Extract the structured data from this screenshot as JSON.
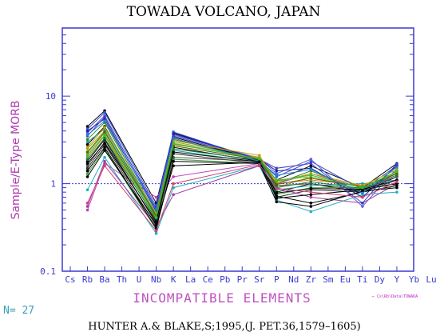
{
  "chart_data": {
    "type": "line",
    "title": "TOWADA VOLCANO, JAPAN",
    "ylabel": "Sample/E-Type MORB",
    "xlabel": "INCOMPATIBLE ELEMENTS",
    "yscale": "log",
    "ylim": [
      0.1,
      60
    ],
    "yticks": [
      0.1,
      1,
      10
    ],
    "ytick_labels": [
      "0.1",
      "1",
      "10"
    ],
    "reference_line": 1,
    "categories": [
      "Cs",
      "Rb",
      "Ba",
      "Th",
      "U",
      "Nb",
      "K",
      "La",
      "Ce",
      "Pb",
      "Pr",
      "Sr",
      "P",
      "Nd",
      "Zr",
      "Sm",
      "Eu",
      "Ti",
      "Dy",
      "Y",
      "Yb",
      "Lu"
    ],
    "sample_count_label": "N= 27",
    "citation": "HUNTER A.& BLAKE,S;1995,(J. PET.36,1579–1605)",
    "credit": "← Cs\\Rb\\Data\\TOWADA",
    "series": [
      {
        "color": "#000000",
        "values": {
          "Rb": 4.5,
          "Ba": 6.8,
          "Nb": 0.6,
          "K": 3.8,
          "Sr": 1.9,
          "P": 1.1,
          "Zr": 1.6,
          "Ti": 0.9,
          "Y": 1.7
        }
      },
      {
        "color": "#3050e0",
        "values": {
          "Rb": 4.2,
          "Ba": 6.5,
          "Nb": 0.55,
          "K": 3.9,
          "Sr": 1.85,
          "P": 1.2,
          "Zr": 1.8,
          "Ti": 0.85,
          "Y": 1.6
        }
      },
      {
        "color": "#c040c0",
        "values": {
          "Rb": 0.5,
          "Ba": 1.7,
          "Nb": 0.7,
          "K": 1.2,
          "Sr": 1.7,
          "P": 1.0,
          "Zr": 1.3,
          "Ti": 0.9,
          "Y": 1.2
        }
      },
      {
        "color": "#20b0c0",
        "values": {
          "Rb": 0.85,
          "Ba": 2.0,
          "Nb": 0.27,
          "K": 0.9,
          "Sr": 1.6,
          "P": 0.65,
          "Zr": 0.48,
          "Ti": 0.75,
          "Y": 0.8
        }
      },
      {
        "color": "#2a8a2a",
        "values": {
          "Rb": 3.2,
          "Ba": 5.0,
          "Nb": 0.45,
          "K": 3.2,
          "Sr": 1.9,
          "P": 1.0,
          "Zr": 1.4,
          "Ti": 0.8,
          "Y": 1.4
        }
      },
      {
        "color": "#a0a020",
        "values": {
          "Rb": 2.5,
          "Ba": 4.0,
          "Nb": 0.4,
          "K": 3.0,
          "Sr": 2.0,
          "P": 0.9,
          "Zr": 1.2,
          "Ti": 0.85,
          "Y": 1.3
        }
      },
      {
        "color": "#000000",
        "values": {
          "Rb": 1.8,
          "Ba": 3.2,
          "Nb": 0.35,
          "K": 2.6,
          "Sr": 1.8,
          "P": 0.8,
          "Zr": 1.0,
          "Ti": 0.8,
          "Y": 1.2
        }
      },
      {
        "color": "#6060e0",
        "values": {
          "Rb": 3.8,
          "Ba": 6.0,
          "Nb": 0.5,
          "K": 3.6,
          "Sr": 1.95,
          "P": 1.3,
          "Zr": 1.9,
          "Ti": 0.55,
          "Y": 1.5
        }
      },
      {
        "color": "#303030",
        "values": {
          "Rb": 1.5,
          "Ba": 2.8,
          "Nb": 0.33,
          "K": 2.2,
          "Sr": 1.7,
          "P": 0.7,
          "Zr": 0.85,
          "Ti": 0.8,
          "Y": 1.1
        }
      },
      {
        "color": "#40a040",
        "values": {
          "Rb": 1.3,
          "Ba": 2.5,
          "Nb": 0.3,
          "K": 1.9,
          "Sr": 1.7,
          "P": 0.75,
          "Zr": 0.9,
          "Ti": 0.9,
          "Y": 1.0
        }
      },
      {
        "color": "#e08020",
        "values": {
          "Rb": 2.0,
          "Ba": 3.5,
          "Nb": 0.38,
          "K": 2.8,
          "Sr": 2.0,
          "P": 1.0,
          "Zr": 1.1,
          "Ti": 0.95,
          "Y": 1.3
        }
      },
      {
        "color": "#a040a0",
        "values": {
          "Rb": 0.55,
          "Ba": 1.8,
          "Nb": 0.32,
          "K": 0.75,
          "Sr": 1.6,
          "P": 0.9,
          "Zr": 0.7,
          "Ti": 0.6,
          "Y": 1.0
        }
      },
      {
        "color": "#000000",
        "values": {
          "Rb": 2.8,
          "Ba": 4.5,
          "Nb": 0.42,
          "K": 3.4,
          "Sr": 1.85,
          "P": 0.68,
          "Zr": 0.75,
          "Ti": 0.85,
          "Y": 1.0
        }
      },
      {
        "color": "#2020a0",
        "values": {
          "Rb": 4.0,
          "Ba": 5.5,
          "Nb": 0.48,
          "K": 3.7,
          "Sr": 1.9,
          "P": 1.4,
          "Zr": 1.5,
          "Ti": 0.7,
          "Y": 1.6
        }
      },
      {
        "color": "#20a0a0",
        "values": {
          "Rb": 3.0,
          "Ba": 4.2,
          "Nb": 0.44,
          "K": 2.4,
          "Sr": 1.75,
          "P": 0.85,
          "Zr": 0.95,
          "Ti": 1.0,
          "Y": 1.1
        }
      },
      {
        "color": "#505050",
        "values": {
          "Rb": 1.6,
          "Ba": 3.0,
          "Nb": 0.36,
          "K": 2.0,
          "Sr": 1.8,
          "P": 0.95,
          "Zr": 1.0,
          "Ti": 0.85,
          "Y": 1.2
        }
      },
      {
        "color": "#80c040",
        "values": {
          "Rb": 2.2,
          "Ba": 3.8,
          "Nb": 0.4,
          "K": 2.9,
          "Sr": 1.95,
          "P": 1.1,
          "Zr": 1.2,
          "Ti": 0.9,
          "Y": 1.35
        }
      },
      {
        "color": "#000000",
        "values": {
          "Rb": 1.2,
          "Ba": 2.4,
          "Nb": 0.34,
          "K": 1.6,
          "Sr": 1.75,
          "P": 0.72,
          "Zr": 0.6,
          "Ti": 0.8,
          "Y": 0.95
        }
      },
      {
        "color": "#4040c0",
        "values": {
          "Rb": 3.5,
          "Ba": 5.8,
          "Nb": 0.52,
          "K": 3.5,
          "Sr": 1.9,
          "P": 1.5,
          "Zr": 1.7,
          "Ti": 0.6,
          "Y": 1.7
        }
      },
      {
        "color": "#c0a000",
        "values": {
          "Rb": 2.6,
          "Ba": 4.4,
          "Nb": 0.46,
          "K": 3.1,
          "Sr": 2.1,
          "P": 1.05,
          "Zr": 1.3,
          "Ti": 0.95,
          "Y": 1.45
        }
      },
      {
        "color": "#108040",
        "values": {
          "Rb": 1.9,
          "Ba": 3.3,
          "Nb": 0.39,
          "K": 2.5,
          "Sr": 1.85,
          "P": 0.9,
          "Zr": 1.05,
          "Ti": 0.88,
          "Y": 1.25
        }
      },
      {
        "color": "#000000",
        "values": {
          "Rb": 1.4,
          "Ba": 2.6,
          "Nb": 0.31,
          "K": 1.8,
          "Sr": 1.7,
          "P": 0.62,
          "Zr": 0.55,
          "Ti": 0.82,
          "Y": 0.9
        }
      },
      {
        "color": "#2080d0",
        "values": {
          "Rb": 3.6,
          "Ba": 5.2,
          "Nb": 0.5,
          "K": 3.3,
          "Sr": 1.8,
          "P": 1.25,
          "Zr": 1.45,
          "Ti": 0.78,
          "Y": 1.55
        }
      },
      {
        "color": "#606000",
        "values": {
          "Rb": 2.3,
          "Ba": 3.9,
          "Nb": 0.43,
          "K": 2.7,
          "Sr": 1.9,
          "P": 0.98,
          "Zr": 1.15,
          "Ti": 0.92,
          "Y": 1.3
        }
      },
      {
        "color": "#000000",
        "values": {
          "Rb": 1.7,
          "Ba": 2.9,
          "Nb": 0.37,
          "K": 2.3,
          "Sr": 1.78,
          "P": 0.78,
          "Zr": 0.88,
          "Ti": 0.86,
          "Y": 1.1
        }
      },
      {
        "color": "#30c030",
        "values": {
          "Rb": 2.1,
          "Ba": 3.6,
          "Nb": 0.41,
          "K": 2.85,
          "Sr": 1.92,
          "P": 1.08,
          "Zr": 1.25,
          "Ti": 0.9,
          "Y": 1.38
        }
      },
      {
        "color": "#d04070",
        "values": {
          "Rb": 0.6,
          "Ba": 1.6,
          "Nb": 0.29,
          "K": 1.0,
          "Sr": 1.65,
          "P": 0.88,
          "Zr": 0.8,
          "Ti": 0.7,
          "Y": 1.05
        }
      }
    ]
  }
}
